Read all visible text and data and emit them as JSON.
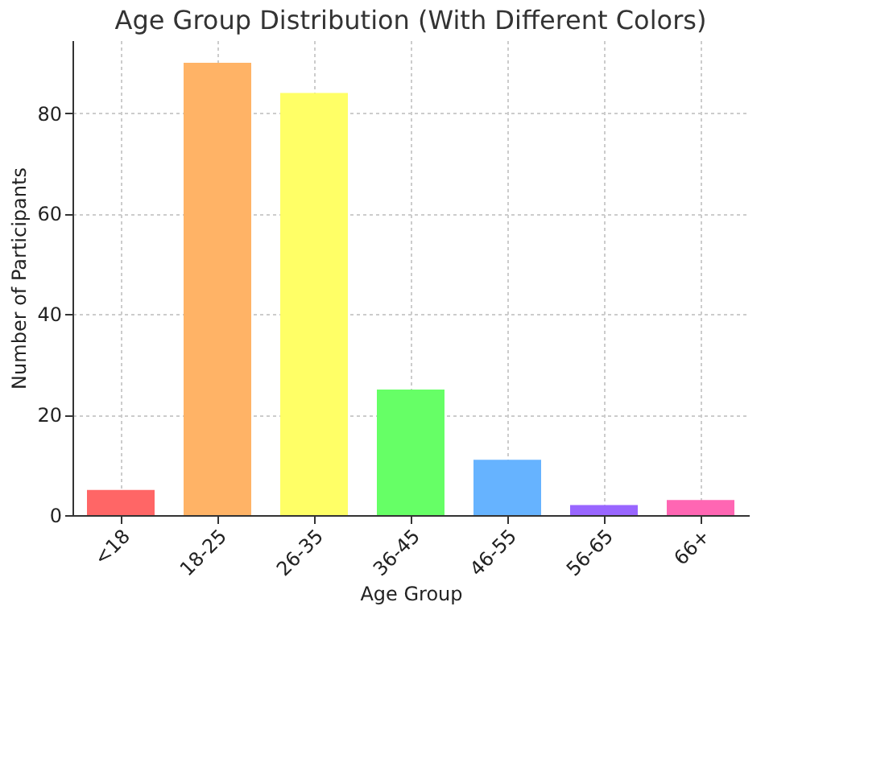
{
  "chart_data": {
    "type": "bar",
    "title": "Age Group Distribution (With Different Colors)",
    "xlabel": "Age Group",
    "ylabel": "Number of Participants",
    "categories": [
      "<18",
      "18-25",
      "26-35",
      "36-45",
      "46-55",
      "56-65",
      "66+"
    ],
    "values": [
      5,
      90,
      84,
      25,
      11,
      2,
      3
    ],
    "colors": [
      "#ff6666",
      "#ffb366",
      "#ffff66",
      "#66ff66",
      "#66b3ff",
      "#9966ff",
      "#ff66b3"
    ],
    "ylim": [
      0,
      94.5
    ],
    "yticks": [
      0,
      20,
      40,
      60,
      80
    ],
    "grid": true,
    "legend": false
  }
}
